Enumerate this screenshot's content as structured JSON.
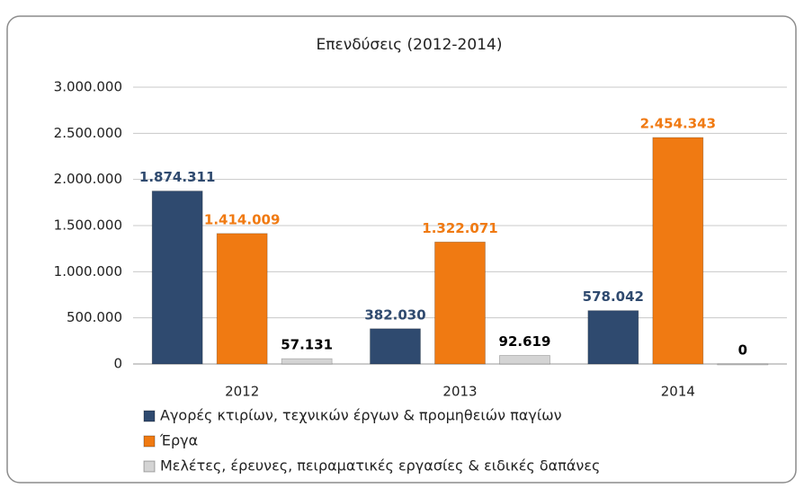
{
  "chart_data": {
    "type": "bar",
    "title": "Επενδύσεις (2012-2014)",
    "categories": [
      "2012",
      "2013",
      "2014"
    ],
    "series": [
      {
        "name": "Αγορές κτιρίων, τεχνικών έργων & προμηθειών παγίων",
        "color": "#2f4a6f",
        "label_color": "#2f4a6f",
        "values": [
          1874311,
          382030,
          578042
        ],
        "value_labels": [
          "1.874.311",
          "382.030",
          "578.042"
        ]
      },
      {
        "name": "Έργα",
        "color": "#f07a12",
        "label_color": "#f07a12",
        "values": [
          1414009,
          1322071,
          2454343
        ],
        "value_labels": [
          "1.414.009",
          "1.322.071",
          "2.454.343"
        ]
      },
      {
        "name": "Μελέτες, έρευνες, πειραματικές εργασίες & ειδικές δαπάνες",
        "color": "#d4d4d4",
        "label_color": "#000000",
        "values": [
          57131,
          92619,
          0
        ],
        "value_labels": [
          "57.131",
          "92.619",
          "0"
        ]
      }
    ],
    "ylim": [
      0,
      3000000
    ],
    "yticks": [
      0,
      {
        "value": 500000,
        "label": "500.000"
      },
      {
        "value": 1000000,
        "label": "1.000.000"
      },
      {
        "value": 1500000,
        "label": "1.500.000"
      },
      {
        "value": 2000000,
        "label": "2.000.000"
      },
      {
        "value": 2500000,
        "label": "2.500.000"
      },
      {
        "value": 3000000,
        "label": "3.000.000"
      }
    ],
    "grid": true
  }
}
